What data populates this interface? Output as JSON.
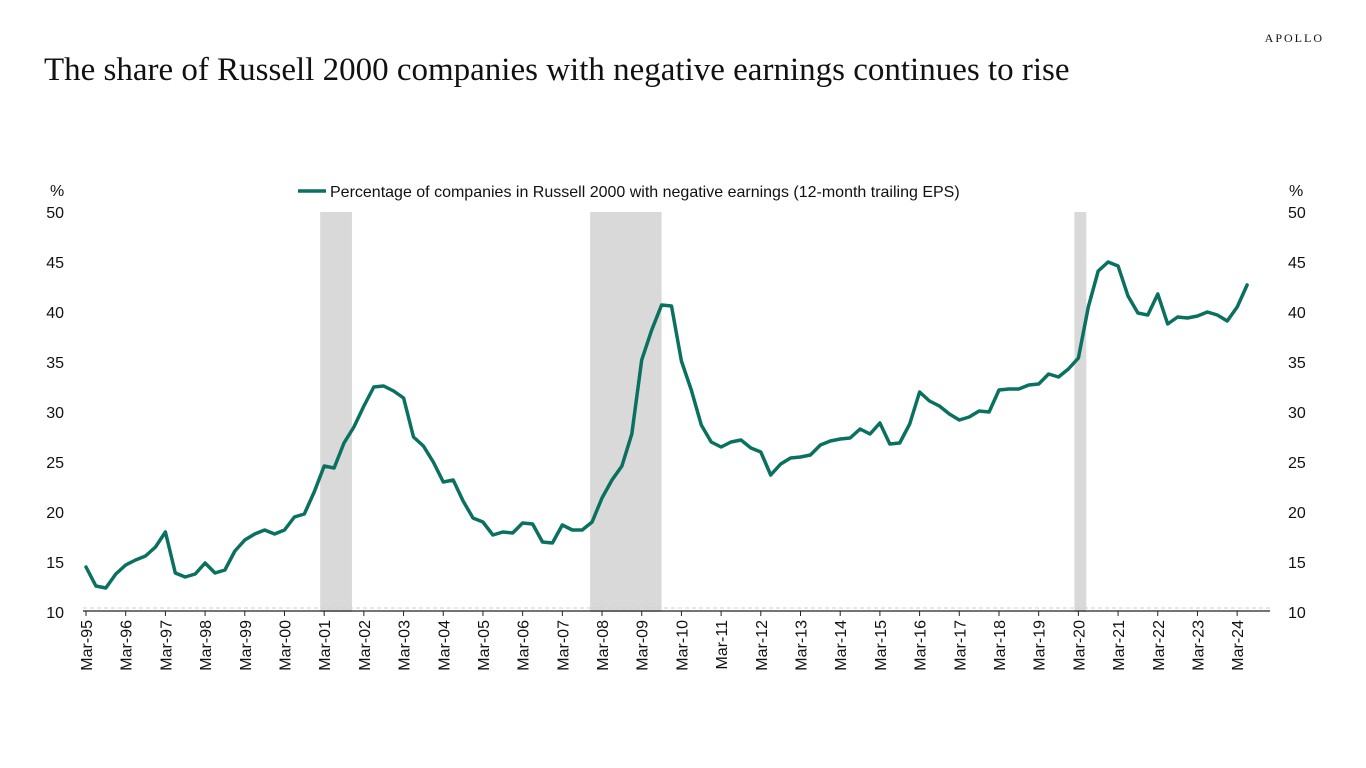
{
  "header": {
    "brand": "APOLLO",
    "title": "The share of Russell 2000 companies with negative earnings continues to rise"
  },
  "chart_data": {
    "type": "line",
    "title": "The share of Russell 2000 companies with negative earnings continues to rise",
    "ylabel_left": "%",
    "ylabel_right": "%",
    "ylim": [
      10,
      50
    ],
    "yticks": [
      10,
      15,
      20,
      25,
      30,
      35,
      40,
      45,
      50
    ],
    "x_range": [
      1995.0,
      2024.5
    ],
    "xtick_labels": [
      "Mar-95",
      "Mar-96",
      "Mar-97",
      "Mar-98",
      "Mar-99",
      "Mar-00",
      "Mar-01",
      "Mar-02",
      "Mar-03",
      "Mar-04",
      "Mar-05",
      "Mar-06",
      "Mar-07",
      "Mar-08",
      "Mar-09",
      "Mar-10",
      "Mar-11",
      "Mar-12",
      "Mar-13",
      "Mar-14",
      "Mar-15",
      "Mar-16",
      "Mar-17",
      "Mar-18",
      "Mar-19",
      "Mar-20",
      "Mar-21",
      "Mar-22",
      "Mar-23",
      "Mar-24"
    ],
    "recessions": [
      [
        2000.9,
        2001.7
      ],
      [
        2007.7,
        2009.5
      ],
      [
        2019.9,
        2020.2
      ]
    ],
    "line_color": "#0a7160",
    "recession_color": "#d9d9d9",
    "series": [
      {
        "name": "Percentage of companies in Russell 2000 with negative earnings (12-month trailing EPS)",
        "points": [
          [
            1995.0,
            14.5
          ],
          [
            1995.25,
            12.6
          ],
          [
            1995.5,
            12.4
          ],
          [
            1995.75,
            13.8
          ],
          [
            1996.0,
            14.7
          ],
          [
            1996.25,
            15.2
          ],
          [
            1996.5,
            15.6
          ],
          [
            1996.75,
            16.5
          ],
          [
            1997.0,
            18.0
          ],
          [
            1997.25,
            13.9
          ],
          [
            1997.5,
            13.5
          ],
          [
            1997.75,
            13.8
          ],
          [
            1998.0,
            14.9
          ],
          [
            1998.25,
            13.9
          ],
          [
            1998.5,
            14.2
          ],
          [
            1998.75,
            16.1
          ],
          [
            1999.0,
            17.2
          ],
          [
            1999.25,
            17.8
          ],
          [
            1999.5,
            18.2
          ],
          [
            1999.75,
            17.8
          ],
          [
            2000.0,
            18.2
          ],
          [
            2000.25,
            19.5
          ],
          [
            2000.5,
            19.8
          ],
          [
            2000.75,
            22.0
          ],
          [
            2001.0,
            24.6
          ],
          [
            2001.25,
            24.4
          ],
          [
            2001.5,
            26.9
          ],
          [
            2001.75,
            28.5
          ],
          [
            2002.0,
            30.6
          ],
          [
            2002.25,
            32.5
          ],
          [
            2002.5,
            32.6
          ],
          [
            2002.75,
            32.1
          ],
          [
            2003.0,
            31.4
          ],
          [
            2003.25,
            27.5
          ],
          [
            2003.5,
            26.6
          ],
          [
            2003.75,
            25.0
          ],
          [
            2004.0,
            23.0
          ],
          [
            2004.25,
            23.2
          ],
          [
            2004.5,
            21.1
          ],
          [
            2004.75,
            19.4
          ],
          [
            2005.0,
            19.0
          ],
          [
            2005.25,
            17.7
          ],
          [
            2005.5,
            18.0
          ],
          [
            2005.75,
            17.9
          ],
          [
            2006.0,
            18.9
          ],
          [
            2006.25,
            18.8
          ],
          [
            2006.5,
            17.0
          ],
          [
            2006.75,
            16.9
          ],
          [
            2007.0,
            18.7
          ],
          [
            2007.25,
            18.2
          ],
          [
            2007.5,
            18.2
          ],
          [
            2007.75,
            19.0
          ],
          [
            2008.0,
            21.4
          ],
          [
            2008.25,
            23.2
          ],
          [
            2008.5,
            24.6
          ],
          [
            2008.75,
            27.8
          ],
          [
            2009.0,
            35.2
          ],
          [
            2009.25,
            38.2
          ],
          [
            2009.5,
            40.7
          ],
          [
            2009.75,
            40.6
          ],
          [
            2010.0,
            35.1
          ],
          [
            2010.25,
            32.2
          ],
          [
            2010.5,
            28.7
          ],
          [
            2010.75,
            27.0
          ],
          [
            2011.0,
            26.5
          ],
          [
            2011.25,
            27.0
          ],
          [
            2011.5,
            27.2
          ],
          [
            2011.75,
            26.4
          ],
          [
            2012.0,
            26.0
          ],
          [
            2012.25,
            23.7
          ],
          [
            2012.5,
            24.8
          ],
          [
            2012.75,
            25.4
          ],
          [
            2013.0,
            25.5
          ],
          [
            2013.25,
            25.7
          ],
          [
            2013.5,
            26.7
          ],
          [
            2013.75,
            27.1
          ],
          [
            2014.0,
            27.3
          ],
          [
            2014.25,
            27.4
          ],
          [
            2014.5,
            28.3
          ],
          [
            2014.75,
            27.8
          ],
          [
            2015.0,
            28.9
          ],
          [
            2015.25,
            26.8
          ],
          [
            2015.5,
            26.9
          ],
          [
            2015.75,
            28.8
          ],
          [
            2016.0,
            32.0
          ],
          [
            2016.25,
            31.1
          ],
          [
            2016.5,
            30.6
          ],
          [
            2016.75,
            29.8
          ],
          [
            2017.0,
            29.2
          ],
          [
            2017.25,
            29.5
          ],
          [
            2017.5,
            30.1
          ],
          [
            2017.75,
            30.0
          ],
          [
            2018.0,
            32.2
          ],
          [
            2018.25,
            32.3
          ],
          [
            2018.5,
            32.3
          ],
          [
            2018.75,
            32.7
          ],
          [
            2019.0,
            32.8
          ],
          [
            2019.25,
            33.8
          ],
          [
            2019.5,
            33.5
          ],
          [
            2019.75,
            34.3
          ],
          [
            2020.0,
            35.4
          ],
          [
            2020.25,
            40.5
          ],
          [
            2020.5,
            44.1
          ],
          [
            2020.75,
            45.0
          ],
          [
            2021.0,
            44.6
          ],
          [
            2021.25,
            41.6
          ],
          [
            2021.5,
            39.9
          ],
          [
            2021.75,
            39.7
          ],
          [
            2022.0,
            41.8
          ],
          [
            2022.25,
            38.8
          ],
          [
            2022.5,
            39.5
          ],
          [
            2022.75,
            39.4
          ],
          [
            2023.0,
            39.6
          ],
          [
            2023.25,
            40.0
          ],
          [
            2023.5,
            39.7
          ],
          [
            2023.75,
            39.1
          ],
          [
            2024.0,
            40.5
          ],
          [
            2024.25,
            42.7
          ]
        ]
      }
    ],
    "legend_position": "top-center"
  }
}
